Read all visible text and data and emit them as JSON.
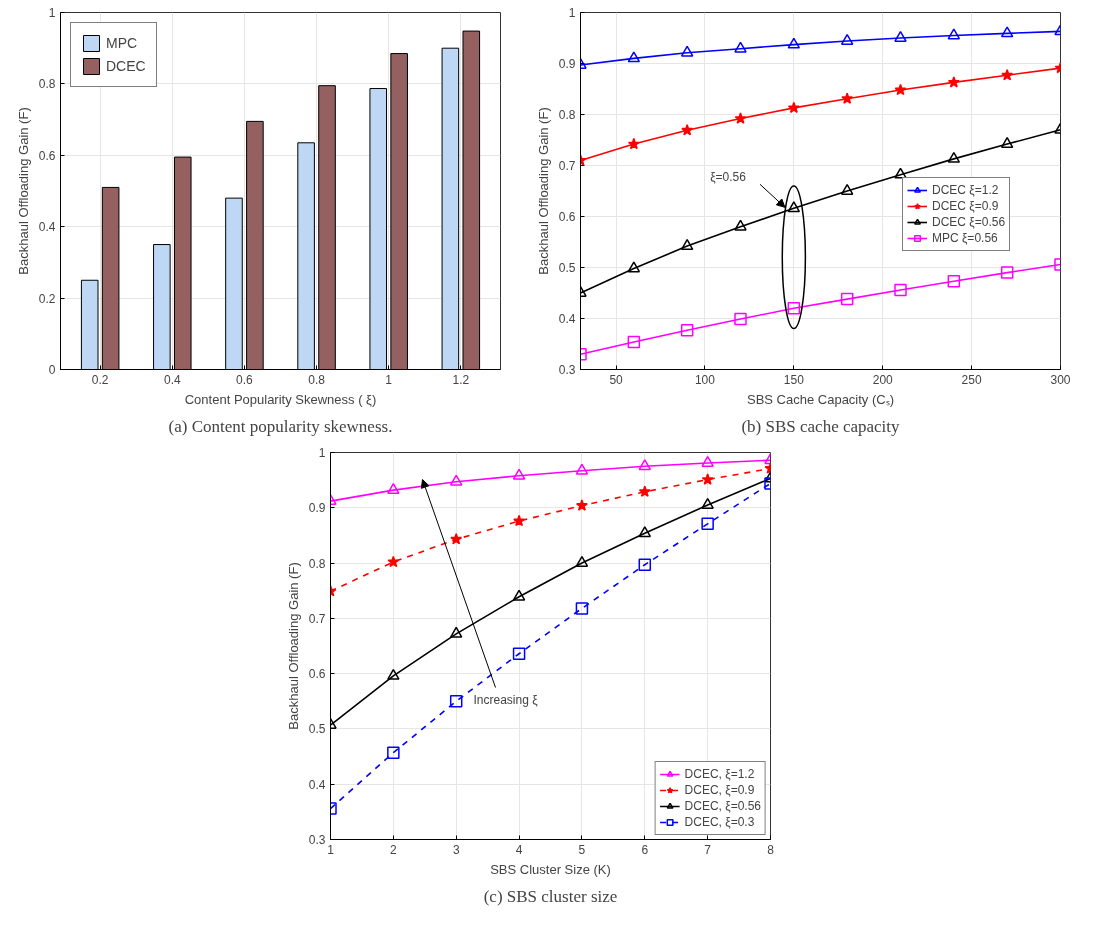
{
  "chart_data": [
    {
      "type": "bar",
      "categories": [
        "0.2",
        "0.4",
        "0.6",
        "0.8",
        "1",
        "1.2"
      ],
      "xlabel": "Content Popularity Skewness ( ξ)",
      "ylabel": "Backhaul Offloading Gain (F)",
      "series": [
        {
          "name": "MPC",
          "color": "#bdd7f5",
          "values": [
            0.25,
            0.35,
            0.48,
            0.635,
            0.787,
            0.9
          ]
        },
        {
          "name": "DCEC",
          "color": "#956060",
          "values": [
            0.51,
            0.595,
            0.695,
            0.795,
            0.885,
            0.948
          ]
        }
      ],
      "ylim": [
        0,
        1
      ],
      "yticks": [
        0,
        0.2,
        0.4,
        0.6,
        0.8,
        1
      ],
      "grid": true,
      "legend": "top left",
      "annotations": [
        "(a) Content popularity skewness."
      ]
    },
    {
      "type": "line",
      "x": [
        30,
        60,
        90,
        120,
        150,
        180,
        210,
        240,
        270,
        300
      ],
      "xlabel": "SBS Cache Capacity (Cₛ)",
      "ylabel": "Backhaul Offloading Gain (F)",
      "series": [
        {
          "name": "DCEC ξ=1.2",
          "color": "#0000ff",
          "marker": "triangle",
          "values": [
            0.897,
            0.91,
            0.921,
            0.929,
            0.937,
            0.944,
            0.95,
            0.955,
            0.959,
            0.963
          ]
        },
        {
          "name": "DCEC ξ=0.9",
          "color": "#ff0000",
          "marker": "star",
          "values": [
            0.71,
            0.742,
            0.769,
            0.792,
            0.813,
            0.831,
            0.848,
            0.863,
            0.877,
            0.891
          ]
        },
        {
          "name": "DCEC ξ=0.56",
          "color": "#000000",
          "marker": "triangle",
          "values": [
            0.45,
            0.498,
            0.542,
            0.58,
            0.616,
            0.65,
            0.682,
            0.713,
            0.742,
            0.77
          ]
        },
        {
          "name": "MPC ξ=0.56",
          "color": "#ff00ff",
          "marker": "square",
          "values": [
            0.33,
            0.354,
            0.377,
            0.399,
            0.42,
            0.438,
            0.456,
            0.473,
            0.49,
            0.506
          ]
        }
      ],
      "xlim": [
        30,
        300
      ],
      "xticks": [
        50,
        100,
        150,
        200,
        250,
        300
      ],
      "ylim": [
        0.3,
        1
      ],
      "yticks": [
        0.3,
        0.4,
        0.5,
        0.6,
        0.7,
        0.8,
        0.9,
        1
      ],
      "grid": true,
      "legend": "right",
      "line_style": "solid",
      "annotations": [
        {
          "text": "ξ=0.56",
          "x": 145,
          "y": 0.618
        },
        "(b) SBS cache capacity"
      ]
    },
    {
      "type": "line",
      "x": [
        1,
        2,
        3,
        4,
        5,
        6,
        7,
        8
      ],
      "xlabel": "SBS Cluster Size (K)",
      "ylabel": "Backhaul Offloading Gain (F)",
      "series": [
        {
          "name": "DCEC, ξ=1.2",
          "color": "#ff00ff",
          "marker": "triangle",
          "line_style": "solid",
          "values": [
            0.912,
            0.932,
            0.947,
            0.958,
            0.967,
            0.975,
            0.981,
            0.986
          ]
        },
        {
          "name": "DCEC, ξ=0.9",
          "color": "#ff0000",
          "marker": "star",
          "line_style": "dashed",
          "values": [
            0.749,
            0.802,
            0.843,
            0.876,
            0.904,
            0.929,
            0.951,
            0.971
          ]
        },
        {
          "name": "DCEC, ξ=0.56",
          "color": "#000000",
          "marker": "triangle",
          "line_style": "solid",
          "values": [
            0.507,
            0.596,
            0.672,
            0.739,
            0.8,
            0.854,
            0.905,
            0.953
          ]
        },
        {
          "name": "DCEC, ξ=0.3",
          "color": "#0000ff",
          "marker": "square",
          "line_style": "dashed",
          "values": [
            0.356,
            0.457,
            0.55,
            0.636,
            0.718,
            0.797,
            0.871,
            0.944
          ]
        }
      ],
      "xlim": [
        1,
        8
      ],
      "xticks": [
        1,
        2,
        3,
        4,
        5,
        6,
        7,
        8
      ],
      "ylim": [
        0.3,
        1
      ],
      "yticks": [
        0.3,
        0.4,
        0.5,
        0.6,
        0.7,
        0.8,
        0.9,
        1
      ],
      "grid": true,
      "legend": "bottom right",
      "annotations": [
        "Increasing ξ",
        "(c) SBS cluster size"
      ]
    }
  ]
}
